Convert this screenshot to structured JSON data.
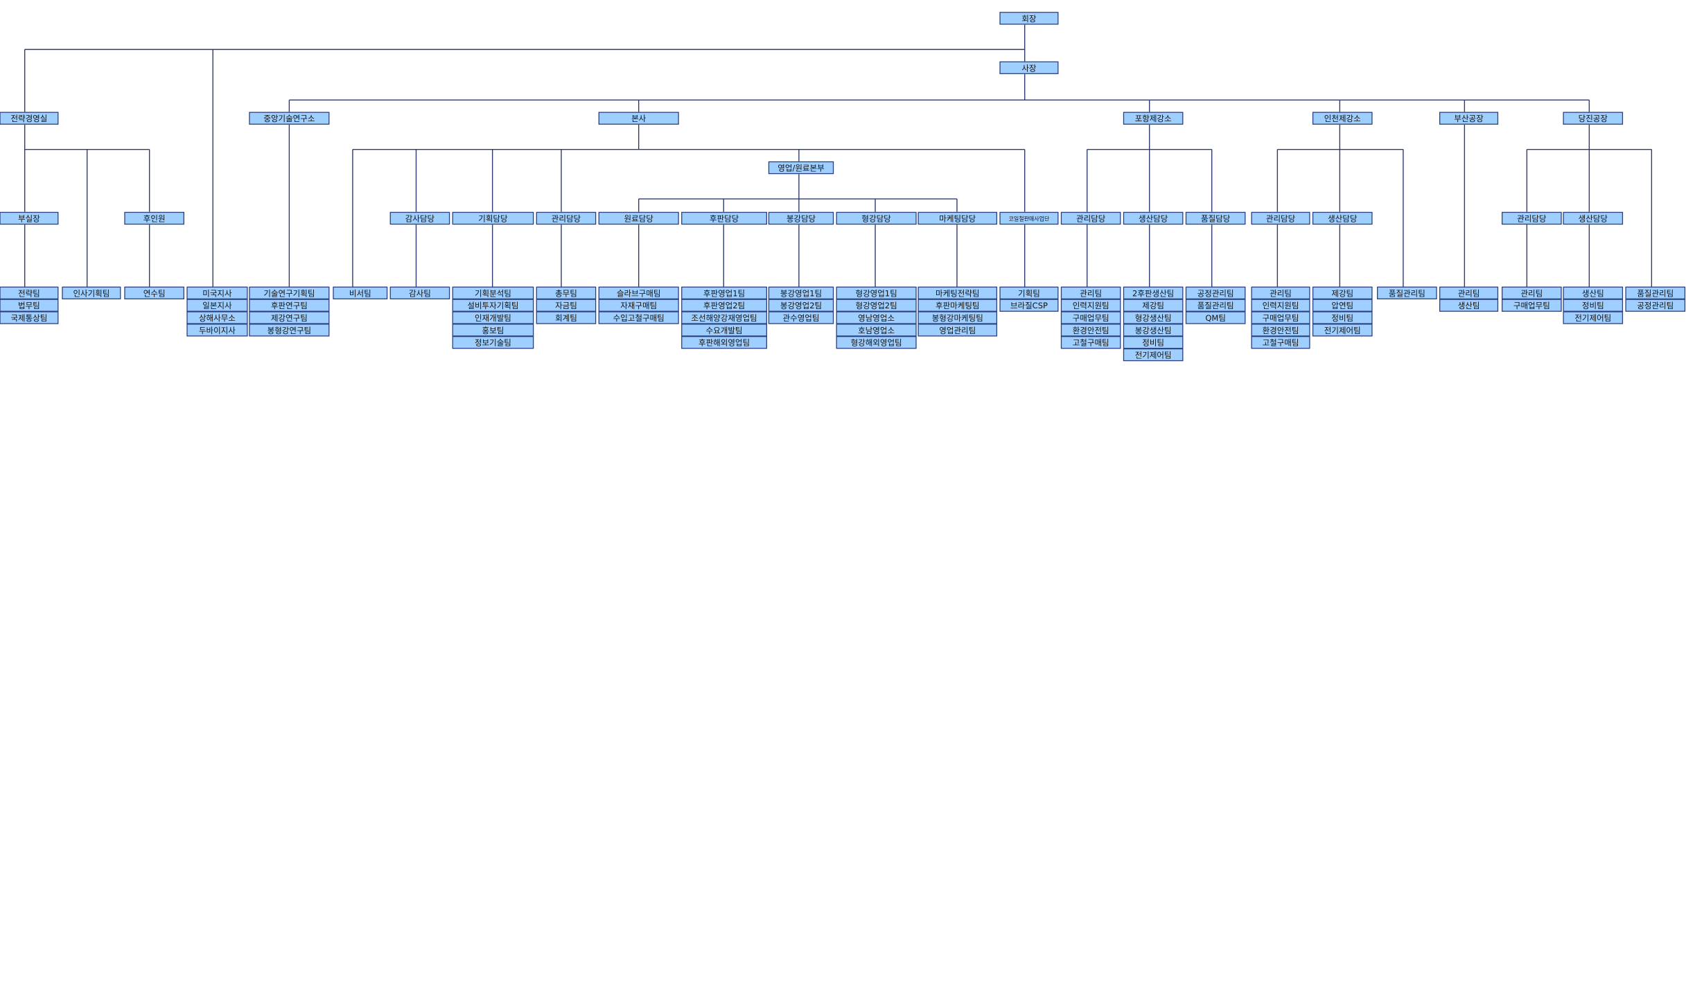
{
  "nodes": [
    {
      "label": "회장"
    },
    {
      "label": "사장"
    },
    {
      "label": "전략경영실"
    },
    {
      "label": "중앙기술연구소"
    },
    {
      "label": "본사"
    },
    {
      "label": "포항제강소"
    },
    {
      "label": "인천제강소"
    },
    {
      "label": "부산공장"
    },
    {
      "label": "당진공장"
    },
    {
      "label": "영업/원료본부"
    },
    {
      "label": "부실장"
    },
    {
      "label": "후인원"
    },
    {
      "label": "감사담당"
    },
    {
      "label": "기획담당"
    },
    {
      "label": "관리담당"
    },
    {
      "label": "원료담당"
    },
    {
      "label": "후판담당"
    },
    {
      "label": "봉강담당"
    },
    {
      "label": "형강담당"
    },
    {
      "label": "마케팅담당"
    },
    {
      "label": "코일철판매사업단"
    },
    {
      "label": "관리담당"
    },
    {
      "label": "생산담당"
    },
    {
      "label": "품질담당"
    },
    {
      "label": "관리담당"
    },
    {
      "label": "생산담당"
    },
    {
      "label": "관리담당"
    },
    {
      "label": "생산담당"
    }
  ],
  "teams": [
    {
      "items": [
        "전략팀",
        "법무팀",
        "국제통상팀"
      ]
    },
    {
      "items": [
        "인사기획팀"
      ]
    },
    {
      "items": [
        "연수팀"
      ]
    },
    {
      "items": [
        "미국지사",
        "일본지사",
        "상해사무소",
        "두바이지사"
      ]
    },
    {
      "items": [
        "기술연구기획팀",
        "후판연구팀",
        "제강연구팀",
        "봉형강연구팀"
      ]
    },
    {
      "items": [
        "비서팀"
      ]
    },
    {
      "items": [
        "감사팀"
      ]
    },
    {
      "items": [
        "기획분석팀",
        "설비투자기획팀",
        "인재개발팀",
        "홍보팀",
        "정보기술팀"
      ]
    },
    {
      "items": [
        "총무팀",
        "자금팀",
        "회계팀"
      ]
    },
    {
      "items": [
        "슬라브구매팀",
        "자재구매팀",
        "수입고철구매팀"
      ]
    },
    {
      "items": [
        "후판영업1팀",
        "후판영업2팀",
        "조선해양강재영업팀",
        "수요개발팀",
        "후판해외영업팀"
      ]
    },
    {
      "items": [
        "봉강영업1팀",
        "봉강영업2팀",
        "관수영업팀"
      ]
    },
    {
      "items": [
        "형강영업1팀",
        "형강영업2팀",
        "영남영업소",
        "호남영업소",
        "형강해외영업팀"
      ]
    },
    {
      "items": [
        "마케팅전략팀",
        "후판마케팅팀",
        "봉형강마케팅팀",
        "영업관리팀"
      ]
    },
    {
      "items": [
        "기획팀",
        "브라질CSP"
      ]
    },
    {
      "items": [
        "관리팀",
        "인력지원팀",
        "구매업무팀",
        "환경안전팀",
        "고철구매팀"
      ]
    },
    {
      "items": [
        "2후판생산팀",
        "제강팀",
        "형강생산팀",
        "봉강생산팀",
        "정비팀",
        "전기제어팀"
      ]
    },
    {
      "items": [
        "공정관리팀",
        "품질관리팀",
        "QM팀"
      ]
    },
    {
      "items": [
        "관리팀",
        "인력지원팀",
        "구매업무팀",
        "환경안전팀",
        "고철구매팀"
      ]
    },
    {
      "items": [
        "제강팀",
        "압연팀",
        "정비팀",
        "전기제어팀"
      ]
    },
    {
      "items": [
        "품질관리팀"
      ]
    },
    {
      "items": [
        "관리팀",
        "생산팀"
      ]
    },
    {
      "items": [
        "관리팀",
        "구매업무팀"
      ]
    },
    {
      "items": [
        "생산팀",
        "정비팀",
        "전기제어팀"
      ]
    },
    {
      "items": [
        "품질관리팀",
        "공정관리팀"
      ]
    }
  ]
}
